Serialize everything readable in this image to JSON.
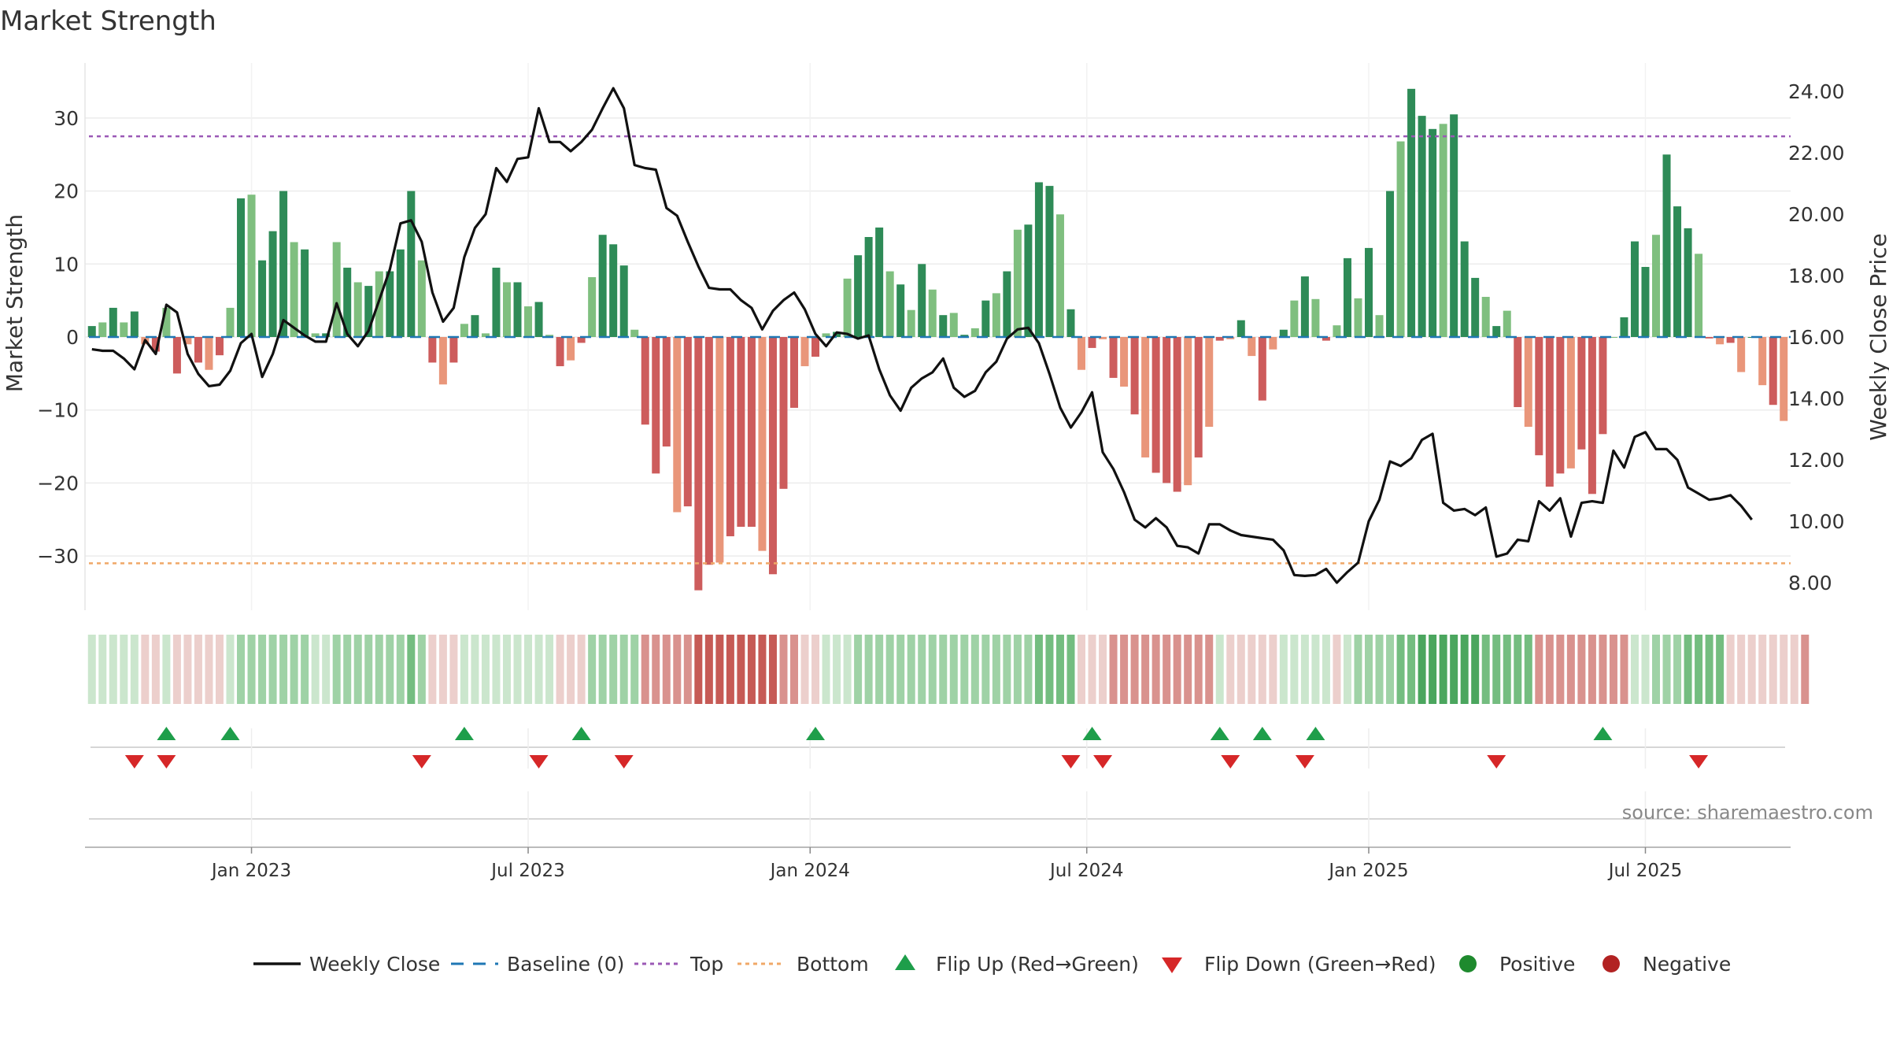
{
  "chart_data": {
    "type": "bar",
    "title": "Market Strength",
    "ylabel": "Market Strength",
    "y2label": "Weekly Close Price",
    "source": "source: sharemaestro.com",
    "ylim": [
      -37,
      37
    ],
    "y2lim": [
      7.0,
      25.0
    ],
    "yticks": [
      {
        "v": 30,
        "label": "30"
      },
      {
        "v": 20,
        "label": "20"
      },
      {
        "v": 10,
        "label": "10"
      },
      {
        "v": 0,
        "label": "0"
      },
      {
        "v": -10,
        "label": "−10"
      },
      {
        "v": -20,
        "label": "−20"
      },
      {
        "v": -30,
        "label": "−30"
      }
    ],
    "y2ticks": [
      {
        "v": 24,
        "label": "24.00"
      },
      {
        "v": 22,
        "label": "22.00"
      },
      {
        "v": 20,
        "label": "20.00"
      },
      {
        "v": 18,
        "label": "18.00"
      },
      {
        "v": 16,
        "label": "16.00"
      },
      {
        "v": 14,
        "label": "14.00"
      },
      {
        "v": 12,
        "label": "12.00"
      },
      {
        "v": 10,
        "label": "10.00"
      },
      {
        "v": 8,
        "label": "8.00"
      }
    ],
    "xticks": [
      {
        "week": 15,
        "label": "Jan 2023"
      },
      {
        "week": 41,
        "label": "Jul 2023"
      },
      {
        "week": 67.5,
        "label": "Jan 2024"
      },
      {
        "week": 93.5,
        "label": "Jul 2024"
      },
      {
        "week": 120,
        "label": "Jan 2025"
      },
      {
        "week": 146,
        "label": "Jul 2025"
      }
    ],
    "top_level": 27.5,
    "bottom_level": -31,
    "strength": [
      1.5,
      2,
      4,
      2,
      3.5,
      -1,
      -2,
      4,
      -5,
      -1,
      -3.5,
      -4.5,
      -2.5,
      4,
      19,
      19.5,
      10.5,
      14.5,
      20,
      13,
      12,
      0.5,
      0.5,
      13,
      9.5,
      7.5,
      7,
      9,
      9,
      12,
      20,
      10.5,
      -3.5,
      -6.5,
      -3.5,
      1.8,
      3,
      0.5,
      9.5,
      7.5,
      7.5,
      4.2,
      4.8,
      0.3,
      -4,
      -3.2,
      -0.8,
      8.2,
      14,
      12.7,
      9.8,
      1,
      -12,
      -18.7,
      -15,
      -24,
      -23.2,
      -34.7,
      -31.2,
      -30.9,
      -27.3,
      -26,
      -26,
      -29.3,
      -32.5,
      -20.8,
      -9.7,
      -4,
      -2.7,
      0.5,
      0.7,
      8,
      11.2,
      13.7,
      15,
      9,
      7.2,
      3.7,
      10,
      6.5,
      3,
      3.3,
      0.3,
      1.2,
      5,
      6,
      9,
      14.7,
      15.4,
      21.2,
      20.7,
      16.8,
      3.8,
      -4.5,
      -1.5,
      -0.3,
      -5.6,
      -6.8,
      -10.6,
      -16.5,
      -18.6,
      -20,
      -21.2,
      -20.3,
      -16.5,
      -12.3,
      -0.5,
      -0.3,
      2.3,
      -2.6,
      -8.7,
      -1.7,
      1,
      5,
      8.3,
      5.2,
      -0.5,
      1.6,
      10.8,
      5.3,
      12.2,
      3,
      20,
      26.8,
      34,
      30.3,
      28.5,
      29.2,
      30.5,
      13.1,
      8.1,
      5.5,
      1.5,
      3.6,
      -9.6,
      -12.3,
      -16.2,
      -20.5,
      -18.7,
      -18,
      -15.4,
      -21.5,
      -13.3,
      0,
      2.7,
      13.1,
      9.6,
      14,
      25,
      17.9,
      14.9,
      11.4,
      -0.2,
      -1,
      -0.8,
      -4.8,
      0,
      -6.6,
      -9.3,
      -11.5
    ],
    "price": [
      15.6,
      15.55,
      15.55,
      15.3,
      14.95,
      15.9,
      15.45,
      17.05,
      16.8,
      15.45,
      14.8,
      14.4,
      14.45,
      14.9,
      15.8,
      16.1,
      14.7,
      15.45,
      16.55,
      16.3,
      16.05,
      15.85,
      15.85,
      17.1,
      16.1,
      15.7,
      16.2,
      17.2,
      18.2,
      19.7,
      19.8,
      19.1,
      17.45,
      16.5,
      16.95,
      18.6,
      19.55,
      20,
      21.5,
      21.05,
      21.8,
      21.85,
      23.45,
      22.35,
      22.35,
      22.05,
      22.35,
      22.75,
      23.45,
      24.1,
      23.45,
      21.6,
      21.5,
      21.45,
      20.2,
      19.95,
      19.1,
      18.3,
      17.6,
      17.55,
      17.55,
      17.2,
      16.95,
      16.25,
      16.85,
      17.2,
      17.45,
      16.9,
      16.1,
      15.7,
      16.15,
      16.1,
      15.95,
      16.05,
      14.95,
      14.1,
      13.6,
      14.35,
      14.65,
      14.85,
      15.3,
      14.35,
      14.05,
      14.25,
      14.85,
      15.2,
      15.95,
      16.25,
      16.3,
      15.8,
      14.8,
      13.7,
      13.05,
      13.55,
      14.2,
      12.25,
      11.7,
      10.95,
      10.05,
      9.8,
      10.1,
      9.8,
      9.2,
      9.15,
      8.95,
      9.9,
      9.9,
      9.7,
      9.55,
      9.5,
      9.45,
      9.4,
      9.05,
      8.25,
      8.22,
      8.25,
      8.45,
      8.0,
      8.35,
      8.65,
      10,
      10.7,
      11.95,
      11.8,
      12.05,
      12.65,
      12.85,
      10.6,
      10.35,
      10.4,
      10.2,
      10.45,
      8.85,
      8.95,
      9.4,
      9.35,
      10.65,
      10.35,
      10.75,
      9.5,
      10.6,
      10.65,
      10.6,
      12.3,
      11.75,
      12.75,
      12.9,
      12.35,
      12.35,
      12,
      11.1,
      10.9,
      10.7,
      10.75,
      10.85,
      10.5,
      10.05
    ],
    "flip_up_weeks": [
      7,
      13,
      35,
      46,
      68,
      94,
      106,
      110,
      115,
      142
    ],
    "flip_down_weeks": [
      4,
      7,
      31,
      42,
      50,
      92,
      95,
      107,
      114,
      132,
      151
    ],
    "strip_levels": [
      1,
      1,
      1,
      1,
      1,
      -1,
      -1,
      1,
      -1,
      -1,
      -1,
      -1,
      -1,
      1,
      2,
      2,
      2,
      2,
      2,
      2,
      2,
      1,
      1,
      2,
      2,
      2,
      2,
      2,
      2,
      2,
      3,
      2,
      -1,
      -1,
      -1,
      1,
      1,
      1,
      1,
      1,
      1,
      1,
      1,
      1,
      -1,
      -1,
      -1,
      2,
      2,
      2,
      2,
      2,
      -2,
      -2,
      -2,
      -2,
      -2,
      -3,
      -3,
      -3,
      -3,
      -3,
      -3,
      -3,
      -3,
      -2,
      -2,
      -1,
      -1,
      1,
      1,
      1,
      2,
      2,
      2,
      2,
      2,
      2,
      2,
      2,
      2,
      2,
      2,
      2,
      2,
      2,
      2,
      2,
      2,
      3,
      3,
      3,
      3,
      -1,
      -1,
      -1,
      -2,
      -2,
      -2,
      -2,
      -2,
      -2,
      -2,
      -2,
      -2,
      -2,
      1,
      -1,
      -1,
      -1,
      -1,
      -1,
      1,
      1,
      1,
      1,
      1,
      -1,
      1,
      2,
      2,
      2,
      2,
      3,
      3,
      4,
      4,
      4,
      4,
      4,
      4,
      3,
      3,
      3,
      3,
      3,
      -2,
      -2,
      -2,
      -2,
      -2,
      -2,
      -2,
      -2,
      -2,
      1,
      1,
      2,
      2,
      2,
      3,
      3,
      3,
      3,
      -1,
      -1,
      -1,
      -1,
      -1,
      -1,
      -1,
      -2
    ],
    "legend": [
      "Weekly Close",
      "Baseline (0)",
      "Top",
      "Bottom",
      "Flip Up (Red→Green)",
      "Flip Down (Green→Red)",
      "Positive",
      "Negative"
    ],
    "colors": {
      "pos_dark": "#2e8b57",
      "pos_light": "#7fbf7f",
      "neg_dark": "#cd5c5c",
      "neg_light": "#e9967a",
      "price": "#111111",
      "baseline": "#1f77b4",
      "top": "#9b59b6",
      "bottom": "#f0a868",
      "flip_up": "#1e9e4a",
      "flip_down": "#d62728",
      "positive": "#1e8a2e",
      "negative": "#b22222",
      "grid": "#ececec"
    }
  }
}
